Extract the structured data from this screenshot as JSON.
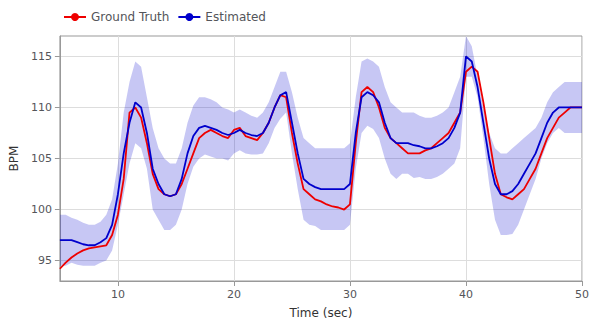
{
  "chart_data": {
    "type": "line",
    "xlabel": "Time (sec)",
    "ylabel": "BPM",
    "x": [
      5,
      5.5,
      6,
      6.5,
      7,
      7.5,
      8,
      8.5,
      9,
      9.5,
      10,
      10.5,
      11,
      11.5,
      12,
      12.5,
      13,
      13.5,
      14,
      14.5,
      15,
      15.5,
      16,
      16.5,
      17,
      17.5,
      18,
      18.5,
      19,
      19.5,
      20,
      20.5,
      21,
      21.5,
      22,
      22.5,
      23,
      23.5,
      24,
      24.5,
      25,
      25.5,
      26,
      26.5,
      27,
      27.5,
      28,
      28.5,
      29,
      29.5,
      30,
      30.5,
      31,
      31.5,
      32,
      32.5,
      33,
      33.5,
      34,
      34.5,
      35,
      35.5,
      36,
      36.5,
      37,
      37.5,
      38,
      38.5,
      39,
      39.5,
      40,
      40.5,
      41,
      41.5,
      42,
      42.5,
      43,
      43.5,
      44,
      44.5,
      45,
      45.5,
      46,
      46.5,
      47,
      47.5,
      48,
      48.5,
      49,
      49.5,
      50
    ],
    "series": [
      {
        "name": "Ground Truth",
        "color": "#ee0000",
        "values": [
          94.2,
          94.8,
          95.3,
          95.7,
          96.0,
          96.2,
          96.3,
          96.4,
          96.5,
          97.5,
          99.5,
          103.0,
          109.5,
          110.0,
          109.0,
          106.5,
          103.5,
          102.0,
          101.5,
          101.3,
          101.5,
          102.5,
          104.0,
          105.5,
          107.0,
          107.5,
          107.8,
          107.5,
          107.2,
          107.0,
          107.8,
          108.0,
          107.2,
          107.0,
          106.8,
          107.5,
          108.5,
          110.0,
          111.2,
          111.0,
          107.5,
          104.5,
          102.0,
          101.5,
          101.0,
          100.8,
          100.5,
          100.3,
          100.2,
          100.0,
          100.5,
          106.5,
          111.5,
          112.0,
          111.5,
          110.0,
          108.0,
          107.0,
          106.5,
          106.0,
          105.5,
          105.5,
          105.5,
          105.8,
          106.0,
          106.5,
          107.0,
          107.5,
          108.5,
          109.5,
          113.5,
          114.0,
          113.5,
          110.5,
          107.0,
          103.5,
          101.5,
          101.2,
          101.0,
          101.5,
          102.0,
          103.0,
          104.0,
          105.5,
          107.0,
          108.0,
          109.0,
          109.5,
          110.0,
          110.0,
          110.0
        ]
      },
      {
        "name": "Estimated",
        "color": "#0000cc",
        "values": [
          97.0,
          97.0,
          97.0,
          96.8,
          96.6,
          96.5,
          96.5,
          96.8,
          97.2,
          98.5,
          101.5,
          105.5,
          108.5,
          110.5,
          110.0,
          107.5,
          104.0,
          102.5,
          101.5,
          101.3,
          101.5,
          103.0,
          105.5,
          107.2,
          108.0,
          108.2,
          108.0,
          107.8,
          107.5,
          107.3,
          107.5,
          107.8,
          107.5,
          107.3,
          107.2,
          107.5,
          108.5,
          110.0,
          111.2,
          111.5,
          108.5,
          105.5,
          103.0,
          102.5,
          102.2,
          102.0,
          102.0,
          102.0,
          102.0,
          102.0,
          102.5,
          107.5,
          111.0,
          111.5,
          111.2,
          110.5,
          108.5,
          107.0,
          106.5,
          106.5,
          106.5,
          106.3,
          106.2,
          106.0,
          106.0,
          106.2,
          106.5,
          107.0,
          108.0,
          109.5,
          115.0,
          114.5,
          112.0,
          108.5,
          105.0,
          102.5,
          101.5,
          101.5,
          101.8,
          102.5,
          103.5,
          104.5,
          105.5,
          107.0,
          108.5,
          109.5,
          110.0,
          110.0,
          110.0,
          110.0,
          110.0
        ],
        "upper": [
          99.5,
          99.5,
          99.2,
          99.0,
          98.7,
          98.5,
          98.5,
          98.8,
          99.5,
          101.0,
          104.5,
          109.5,
          112.5,
          114.5,
          114.0,
          111.0,
          108.0,
          106.0,
          105.0,
          104.5,
          104.5,
          106.0,
          108.5,
          110.2,
          111.0,
          111.0,
          110.8,
          110.5,
          110.0,
          109.8,
          109.5,
          109.8,
          109.5,
          109.2,
          109.0,
          109.5,
          110.5,
          112.0,
          113.5,
          113.5,
          111.5,
          109.0,
          107.0,
          106.5,
          106.0,
          106.0,
          106.0,
          106.0,
          106.0,
          106.0,
          106.5,
          111.0,
          114.5,
          114.8,
          114.5,
          114.0,
          112.0,
          110.5,
          110.0,
          109.5,
          109.5,
          109.5,
          109.2,
          109.0,
          109.0,
          109.2,
          109.5,
          110.0,
          111.5,
          113.0,
          117.0,
          116.0,
          113.0,
          110.0,
          107.5,
          106.0,
          105.5,
          105.5,
          106.0,
          106.5,
          107.0,
          107.5,
          108.0,
          109.0,
          110.5,
          111.5,
          112.0,
          112.5,
          112.5,
          112.5,
          112.5
        ],
        "lower": [
          94.5,
          94.5,
          94.8,
          94.6,
          94.5,
          94.5,
          94.5,
          94.8,
          95.0,
          96.0,
          98.5,
          101.5,
          104.5,
          106.5,
          106.0,
          104.0,
          100.0,
          99.0,
          98.0,
          98.0,
          98.5,
          100.0,
          102.5,
          104.2,
          105.0,
          105.4,
          105.2,
          105.0,
          105.0,
          104.8,
          105.5,
          105.8,
          105.5,
          105.4,
          105.4,
          105.5,
          106.5,
          108.0,
          108.9,
          109.5,
          105.5,
          102.0,
          99.0,
          98.5,
          98.4,
          98.0,
          98.0,
          98.0,
          98.0,
          98.0,
          98.5,
          104.0,
          107.5,
          108.2,
          107.9,
          107.0,
          105.0,
          103.5,
          103.0,
          103.5,
          103.5,
          103.1,
          103.2,
          103.0,
          103.0,
          103.2,
          103.5,
          104.0,
          104.5,
          106.0,
          113.0,
          113.0,
          111.0,
          107.0,
          102.5,
          99.0,
          97.5,
          97.5,
          97.6,
          98.5,
          100.0,
          101.5,
          103.0,
          105.0,
          106.5,
          107.5,
          108.0,
          107.5,
          107.5,
          107.5,
          107.5
        ]
      }
    ],
    "xlim": [
      5,
      50
    ],
    "ylim": [
      93,
      117
    ],
    "xticks": [
      10,
      20,
      30,
      40,
      50
    ],
    "yticks": [
      95,
      100,
      105,
      110,
      115
    ],
    "grid": true,
    "legend": "upper left"
  }
}
